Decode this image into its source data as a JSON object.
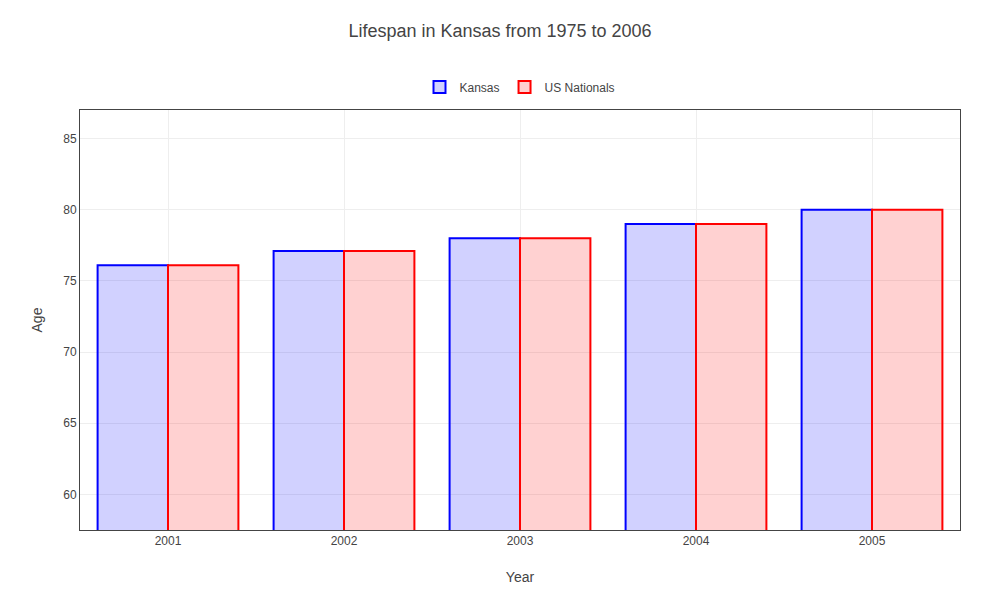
{
  "chart_data": {
    "type": "bar",
    "title": "Lifespan in Kansas from 1975 to 2006",
    "xlabel": "Year",
    "ylabel": "Age",
    "categories": [
      "2001",
      "2002",
      "2003",
      "2004",
      "2005"
    ],
    "series": [
      {
        "name": "Kansas",
        "color": "#0000ff",
        "values": [
          76.1,
          77.1,
          78.0,
          79.0,
          80.0
        ]
      },
      {
        "name": "US Nationals",
        "color": "#ff0000",
        "values": [
          76.1,
          77.1,
          78.0,
          79.0,
          80.0
        ]
      }
    ],
    "ylim": [
      57.5,
      87
    ],
    "yticks": [
      60,
      65,
      70,
      75,
      80,
      85
    ],
    "grid": true,
    "legend": "top"
  }
}
